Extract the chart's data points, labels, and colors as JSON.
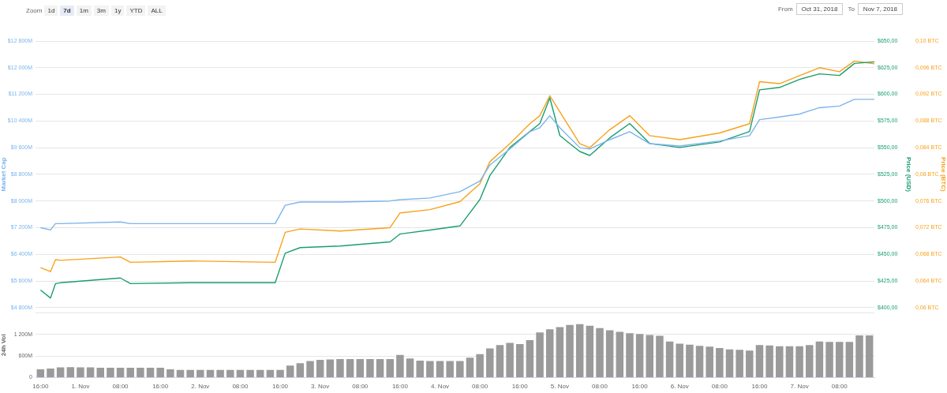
{
  "chart_data": [
    {
      "type": "line",
      "annotations": [
        "Zoom",
        "1d",
        "7d",
        "1m",
        "3m",
        "1y",
        "YTD",
        "ALL",
        "From",
        "Oct 31, 2018",
        "To",
        "Nov 7, 2018"
      ],
      "ylabel": "Market Cap",
      "y2label": "Price (USD)",
      "y3label": "Price (BTC)",
      "grid": "y",
      "tick_labels": "y",
      "xlim": [
        "2018-10-31T15:00",
        "2018-11-07T15:00"
      ],
      "xticks": [
        {
          "value": "2018-10-31T16:00",
          "label": null
        },
        {
          "value": "2018-11-01T00:00",
          "label": null
        },
        {
          "value": "2018-11-01T08:00",
          "label": null
        },
        {
          "value": "2018-11-01T16:00",
          "label": null
        },
        {
          "value": "2018-11-02T00:00",
          "label": null
        },
        {
          "value": "2018-11-02T08:00",
          "label": null
        },
        {
          "value": "2018-11-02T16:00",
          "label": null
        },
        {
          "value": "2018-11-03T00:00",
          "label": null
        },
        {
          "value": "2018-11-03T08:00",
          "label": null
        },
        {
          "value": "2018-11-03T16:00",
          "label": null
        },
        {
          "value": "2018-11-04T00:00",
          "label": null
        },
        {
          "value": "2018-11-04T08:00",
          "label": null
        },
        {
          "value": "2018-11-04T16:00",
          "label": null
        },
        {
          "value": "2018-11-05T00:00",
          "label": null
        },
        {
          "value": "2018-11-05T08:00",
          "label": null
        },
        {
          "value": "2018-11-05T16:00",
          "label": null
        },
        {
          "value": "2018-11-06T00:00",
          "label": null
        },
        {
          "value": "2018-11-06T08:00",
          "label": null
        },
        {
          "value": "2018-11-06T16:00",
          "label": null
        },
        {
          "value": "2018-11-07T00:00",
          "label": null
        },
        {
          "value": "2018-11-07T08:00",
          "label": null
        }
      ],
      "ylim": [
        4800,
        12800
      ],
      "yticks": [
        {
          "value": 4800,
          "label": "$4 800M"
        },
        {
          "value": 5600,
          "label": "$5 600M"
        },
        {
          "value": 6400,
          "label": "$6 400M"
        },
        {
          "value": 7200,
          "label": "$7 200M"
        },
        {
          "value": 8000,
          "label": "$8 000M"
        },
        {
          "value": 8800,
          "label": "$8 800M"
        },
        {
          "value": 9600,
          "label": "$9 600M"
        },
        {
          "value": 10400,
          "label": "$10 400M"
        },
        {
          "value": 11200,
          "label": "$11 200M"
        },
        {
          "value": 12000,
          "label": "$12 000M"
        },
        {
          "value": 12800,
          "label": "$12 800M"
        }
      ],
      "y2lim": [
        400,
        650
      ],
      "y2ticks": [
        {
          "value": 400,
          "label": "$400,00"
        },
        {
          "value": 425,
          "label": "$425,00"
        },
        {
          "value": 450,
          "label": "$450,00"
        },
        {
          "value": 475,
          "label": "$475,00"
        },
        {
          "value": 500,
          "label": "$500,00"
        },
        {
          "value": 525,
          "label": "$525,00"
        },
        {
          "value": 550,
          "label": "$550,00"
        },
        {
          "value": 575,
          "label": "$575,00"
        },
        {
          "value": 600,
          "label": "$600,00"
        },
        {
          "value": 625,
          "label": "$625,00"
        },
        {
          "value": 650,
          "label": "$650,00"
        }
      ],
      "y3lim": [
        0.06,
        0.1
      ],
      "y3ticks": [
        {
          "value": 0.06,
          "label": "0,06 BTC"
        },
        {
          "value": 0.064,
          "label": "0,064 BTC"
        },
        {
          "value": 0.068,
          "label": "0,068 BTC"
        },
        {
          "value": 0.072,
          "label": "0,072 BTC"
        },
        {
          "value": 0.076,
          "label": "0,076 BTC"
        },
        {
          "value": 0.08,
          "label": "0,08 BTC"
        },
        {
          "value": 0.084,
          "label": "0,084 BTC"
        },
        {
          "value": 0.088,
          "label": "0,088 BTC"
        },
        {
          "value": 0.092,
          "label": "0,092 BTC"
        },
        {
          "value": 0.096,
          "label": "0,096 BTC"
        },
        {
          "value": 0.1,
          "label": "0,10 BTC"
        }
      ],
      "x": [
        "2018-10-31T16:00",
        "2018-10-31T18:00",
        "2018-10-31T19:00",
        "2018-10-31T20:00",
        "2018-11-01T08:00",
        "2018-11-01T10:00",
        "2018-11-01T22:00",
        "2018-11-02T15:00",
        "2018-11-02T17:00",
        "2018-11-02T20:00",
        "2018-11-03T04:00",
        "2018-11-03T14:00",
        "2018-11-03T16:00",
        "2018-11-03T22:00",
        "2018-11-04T04:00",
        "2018-11-04T08:00",
        "2018-11-04T10:00",
        "2018-11-04T14:00",
        "2018-11-04T18:00",
        "2018-11-04T20:00",
        "2018-11-04T22:00",
        "2018-11-05T00:00",
        "2018-11-05T04:00",
        "2018-11-05T06:00",
        "2018-11-05T10:00",
        "2018-11-05T14:00",
        "2018-11-05T18:00",
        "2018-11-06T00:00",
        "2018-11-06T08:00",
        "2018-11-06T14:00",
        "2018-11-06T16:00",
        "2018-11-06T20:00",
        "2018-11-07T00:00",
        "2018-11-07T04:00",
        "2018-11-07T08:00",
        "2018-11-07T11:00",
        "2018-11-07T15:00"
      ],
      "series": [
        {
          "color": "#7cb5ec",
          "values": [
            7200,
            7130,
            7320,
            7320,
            7370,
            7320,
            7320,
            7320,
            7870,
            7970,
            7970,
            8000,
            8040,
            8090,
            8280,
            8600,
            9080,
            9560,
            10080,
            10200,
            10560,
            10200,
            9600,
            9560,
            9840,
            10080,
            9720,
            9650,
            9800,
            9960,
            10440,
            10520,
            10610,
            10800,
            10850,
            11050,
            11050
          ]
        },
        {
          "color": "#1a9e6e",
          "axis": "y2",
          "values": [
            416.5,
            409,
            422.5,
            423.3,
            427.8,
            422.5,
            423.3,
            423.3,
            451,
            456.3,
            457.8,
            461.6,
            469,
            472.8,
            476.6,
            501.4,
            523.9,
            550.2,
            565.2,
            572.7,
            596.7,
            561.4,
            546.4,
            542.7,
            559.2,
            572.7,
            553.9,
            550.2,
            555.4,
            565.2,
            604.2,
            606.5,
            614,
            619.2,
            617.7,
            629,
            630.5
          ]
        },
        {
          "color": "#f7a21b",
          "axis": "y3",
          "values": [
            0.066,
            0.0654,
            0.0672,
            0.0671,
            0.0676,
            0.0668,
            0.067,
            0.0668,
            0.0713,
            0.0718,
            0.0715,
            0.072,
            0.0742,
            0.0747,
            0.0759,
            0.0786,
            0.0819,
            0.0846,
            0.0876,
            0.0888,
            0.0918,
            0.0894,
            0.0846,
            0.084,
            0.0867,
            0.0888,
            0.0858,
            0.0852,
            0.0862,
            0.0876,
            0.0939,
            0.0936,
            0.0948,
            0.096,
            0.0954,
            0.097,
            0.0966
          ]
        }
      ]
    },
    {
      "type": "bar",
      "ylabel": "24h Vol",
      "grid": "y",
      "xlim": [
        "2018-10-31T15:00",
        "2018-11-07T15:00"
      ],
      "xticks": [
        {
          "value": "2018-10-31T16:00",
          "label": "16:00"
        },
        {
          "value": "2018-11-01T00:00",
          "label": "1. Nov"
        },
        {
          "value": "2018-11-01T08:00",
          "label": "08:00"
        },
        {
          "value": "2018-11-01T16:00",
          "label": "16:00"
        },
        {
          "value": "2018-11-02T00:00",
          "label": "2. Nov"
        },
        {
          "value": "2018-11-02T08:00",
          "label": "08:00"
        },
        {
          "value": "2018-11-02T16:00",
          "label": "16:00"
        },
        {
          "value": "2018-11-03T00:00",
          "label": "3. Nov"
        },
        {
          "value": "2018-11-03T08:00",
          "label": "08:00"
        },
        {
          "value": "2018-11-03T16:00",
          "label": "16:00"
        },
        {
          "value": "2018-11-04T00:00",
          "label": "4. Nov"
        },
        {
          "value": "2018-11-04T08:00",
          "label": "08:00"
        },
        {
          "value": "2018-11-04T16:00",
          "label": "16:00"
        },
        {
          "value": "2018-11-05T00:00",
          "label": "5. Nov"
        },
        {
          "value": "2018-11-05T08:00",
          "label": "08:00"
        },
        {
          "value": "2018-11-05T16:00",
          "label": "16:00"
        },
        {
          "value": "2018-11-06T00:00",
          "label": "6. Nov"
        },
        {
          "value": "2018-11-06T08:00",
          "label": "08:00"
        },
        {
          "value": "2018-11-06T16:00",
          "label": "16:00"
        },
        {
          "value": "2018-11-07T00:00",
          "label": "7. Nov"
        },
        {
          "value": "2018-11-07T08:00",
          "label": "08:00"
        }
      ],
      "ylim": [
        0,
        1800
      ],
      "yticks": [
        0,
        {
          "value": 600,
          "label": "600M"
        },
        {
          "value": 1200,
          "label": "1 200M"
        },
        {
          "value": 1800,
          "label": null
        }
      ],
      "x": [
        "2018-10-31T16:00",
        "2018-10-31T18:00",
        "2018-10-31T20:00",
        "2018-10-31T22:00",
        "2018-11-01T00:00",
        "2018-11-01T02:00",
        "2018-11-01T04:00",
        "2018-11-01T06:00",
        "2018-11-01T08:00",
        "2018-11-01T10:00",
        "2018-11-01T12:00",
        "2018-11-01T14:00",
        "2018-11-01T16:00",
        "2018-11-01T18:00",
        "2018-11-01T20:00",
        "2018-11-01T22:00",
        "2018-11-02T00:00",
        "2018-11-02T02:00",
        "2018-11-02T04:00",
        "2018-11-02T06:00",
        "2018-11-02T08:00",
        "2018-11-02T10:00",
        "2018-11-02T12:00",
        "2018-11-02T14:00",
        "2018-11-02T16:00",
        "2018-11-02T18:00",
        "2018-11-02T20:00",
        "2018-11-02T22:00",
        "2018-11-03T00:00",
        "2018-11-03T02:00",
        "2018-11-03T04:00",
        "2018-11-03T06:00",
        "2018-11-03T08:00",
        "2018-11-03T10:00",
        "2018-11-03T12:00",
        "2018-11-03T14:00",
        "2018-11-03T16:00",
        "2018-11-03T18:00",
        "2018-11-03T20:00",
        "2018-11-03T22:00",
        "2018-11-04T00:00",
        "2018-11-04T02:00",
        "2018-11-04T04:00",
        "2018-11-04T06:00",
        "2018-11-04T08:00",
        "2018-11-04T10:00",
        "2018-11-04T12:00",
        "2018-11-04T14:00",
        "2018-11-04T16:00",
        "2018-11-04T18:00",
        "2018-11-04T20:00",
        "2018-11-04T22:00",
        "2018-11-05T00:00",
        "2018-11-05T02:00",
        "2018-11-05T04:00",
        "2018-11-05T06:00",
        "2018-11-05T08:00",
        "2018-11-05T10:00",
        "2018-11-05T12:00",
        "2018-11-05T14:00",
        "2018-11-05T16:00",
        "2018-11-05T18:00",
        "2018-11-05T20:00",
        "2018-11-05T22:00",
        "2018-11-06T00:00",
        "2018-11-06T02:00",
        "2018-11-06T04:00",
        "2018-11-06T06:00",
        "2018-11-06T08:00",
        "2018-11-06T10:00",
        "2018-11-06T12:00",
        "2018-11-06T14:00",
        "2018-11-06T16:00",
        "2018-11-06T18:00",
        "2018-11-06T20:00",
        "2018-11-06T22:00",
        "2018-11-07T00:00",
        "2018-11-07T02:00",
        "2018-11-07T04:00",
        "2018-11-07T06:00",
        "2018-11-07T08:00",
        "2018-11-07T10:00",
        "2018-11-07T12:00",
        "2018-11-07T14:00"
      ],
      "series": [
        {
          "color": "#9a9a9a",
          "values": [
            230,
            250,
            280,
            290,
            280,
            280,
            270,
            270,
            270,
            270,
            270,
            270,
            270,
            230,
            210,
            210,
            210,
            210,
            210,
            210,
            210,
            210,
            210,
            210,
            210,
            330,
            400,
            460,
            490,
            500,
            510,
            510,
            510,
            510,
            510,
            510,
            630,
            530,
            470,
            460,
            460,
            460,
            460,
            550,
            650,
            810,
            900,
            960,
            930,
            1040,
            1250,
            1340,
            1400,
            1460,
            1480,
            1440,
            1370,
            1310,
            1270,
            1230,
            1210,
            1180,
            1160,
            1000,
            940,
            910,
            880,
            860,
            820,
            780,
            770,
            750,
            900,
            890,
            870,
            870,
            870,
            900,
            1000,
            990,
            990,
            990,
            1170,
            1170
          ]
        }
      ]
    }
  ]
}
